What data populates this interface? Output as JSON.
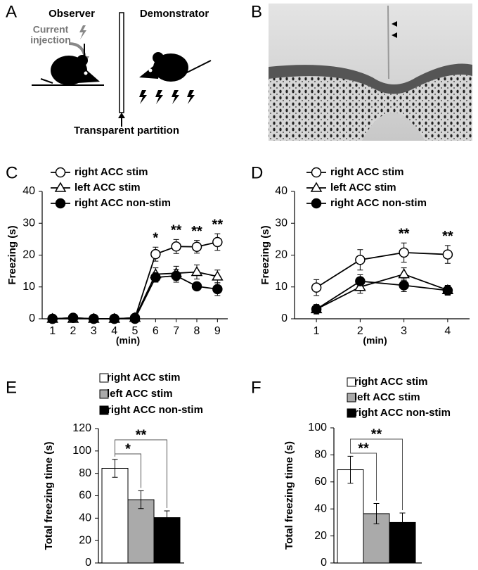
{
  "panel_labels": [
    "A",
    "B",
    "C",
    "D",
    "E",
    "F"
  ],
  "diagram": {
    "observer": "Observer",
    "demonstrator": "Demonstrator",
    "injection": [
      "Current",
      "injection"
    ],
    "partition": "Transparent partition"
  },
  "chart_data": [
    {
      "type": "line",
      "xlabel": "(min)",
      "ylabel": "Freezing (s)",
      "x": [
        1,
        2,
        3,
        4,
        5,
        6,
        7,
        8,
        9
      ],
      "xlim": [
        0.5,
        9.5
      ],
      "xticks": [
        1,
        2,
        3,
        4,
        5,
        6,
        7,
        8,
        9
      ],
      "ylim": [
        0,
        40
      ],
      "yticks": [
        0,
        10,
        20,
        30,
        40
      ],
      "series": [
        {
          "name": "right ACC stim",
          "color": "#000000",
          "marker": "open-circle",
          "values": [
            0,
            0.3,
            0,
            0,
            0.3,
            20.3,
            22.7,
            22.6,
            24.1
          ],
          "errors": [
            0.3,
            0.3,
            0.3,
            0.3,
            0.5,
            2.2,
            2.2,
            2,
            2.6
          ]
        },
        {
          "name": "left ACC stim",
          "color": "#000000",
          "marker": "open-triangle",
          "values": [
            0,
            0,
            0,
            0,
            0.3,
            14,
            14.3,
            14.7,
            13.3
          ],
          "errors": [
            0.3,
            0.3,
            0.3,
            0.3,
            0.5,
            2,
            2.2,
            2.2,
            2
          ]
        },
        {
          "name": "right ACC non-stim",
          "color": "#000000",
          "marker": "filled-circle",
          "values": [
            0,
            0.3,
            0,
            0,
            0,
            13,
            13.5,
            10.2,
            9.3
          ],
          "errors": [
            0.3,
            0.3,
            0.3,
            0.3,
            0.3,
            1.5,
            2,
            1,
            2
          ]
        }
      ],
      "annotations": [
        {
          "x": 6,
          "label": "*"
        },
        {
          "x": 7,
          "label": "**"
        },
        {
          "x": 8,
          "label": "**"
        },
        {
          "x": 9,
          "label": "**"
        }
      ]
    },
    {
      "type": "line",
      "xlabel": "(min)",
      "ylabel": "Freezing (s)",
      "x": [
        1,
        2,
        3,
        4
      ],
      "xlim": [
        0.5,
        4.5
      ],
      "xticks": [
        1,
        2,
        3,
        4
      ],
      "ylim": [
        0,
        40
      ],
      "yticks": [
        0,
        10,
        20,
        30,
        40
      ],
      "series": [
        {
          "name": "right ACC stim",
          "color": "#000000",
          "marker": "open-circle",
          "values": [
            9.8,
            18.5,
            20.8,
            20.2
          ],
          "errors": [
            2.5,
            3.2,
            3,
            2.8
          ]
        },
        {
          "name": "left ACC stim",
          "color": "#000000",
          "marker": "open-triangle",
          "values": [
            3,
            10,
            14,
            9
          ],
          "errors": [
            1,
            2,
            2,
            1.5
          ]
        },
        {
          "name": "right ACC non-stim",
          "color": "#000000",
          "marker": "filled-circle",
          "values": [
            3,
            11.8,
            10.5,
            8.9
          ],
          "errors": [
            1.5,
            2,
            2,
            1.5
          ]
        }
      ],
      "annotations": [
        {
          "x": 3,
          "label": "**"
        },
        {
          "x": 4,
          "label": "**"
        }
      ]
    },
    {
      "type": "bar",
      "ylabel": "Total freezing time (s)",
      "ylim": [
        0,
        120
      ],
      "yticks": [
        0,
        20,
        40,
        60,
        80,
        100,
        120
      ],
      "series": [
        {
          "name": "right ACC stim",
          "color": "#ffffff",
          "values": [
            84.5
          ],
          "errors": [
            8
          ]
        },
        {
          "name": "left ACC stim",
          "color": "#aaaaaa",
          "values": [
            56.5
          ],
          "errors": [
            8
          ]
        },
        {
          "name": "right ACC non-stim",
          "color": "#000000",
          "values": [
            40.5
          ],
          "errors": [
            6
          ]
        }
      ],
      "annotations": [
        {
          "label": "*"
        },
        {
          "label": "**"
        }
      ]
    },
    {
      "type": "bar",
      "ylabel": "Total freezing time (s)",
      "ylim": [
        0,
        100
      ],
      "yticks": [
        0,
        20,
        40,
        60,
        80,
        100
      ],
      "series": [
        {
          "name": "right ACC stim",
          "color": "#ffffff",
          "values": [
            69
          ],
          "errors": [
            10
          ]
        },
        {
          "name": "left ACC stim",
          "color": "#aaaaaa",
          "values": [
            36.5
          ],
          "errors": [
            7.5
          ]
        },
        {
          "name": "right ACC non-stim",
          "color": "#000000",
          "values": [
            30
          ],
          "errors": [
            7
          ]
        }
      ],
      "annotations": [
        {
          "label": "**"
        },
        {
          "label": "**"
        }
      ]
    }
  ]
}
